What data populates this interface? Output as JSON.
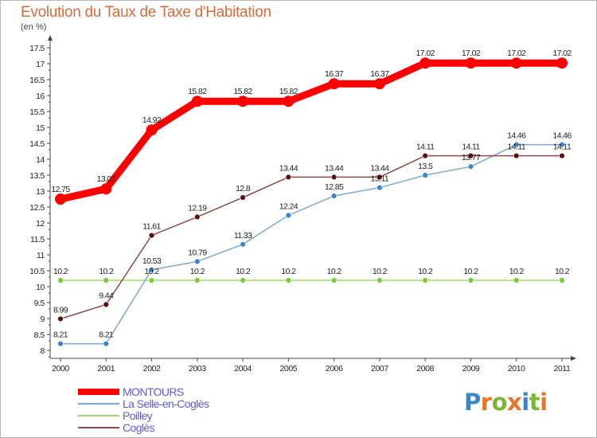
{
  "chart_data": {
    "type": "line",
    "title": "Evolution du Taux de Taxe d'Habitation",
    "ylabel": "(en %)",
    "xlabel": "",
    "x": [
      "2000",
      "2001",
      "2002",
      "2003",
      "2004",
      "2005",
      "2006",
      "2007",
      "2008",
      "2009",
      "2010",
      "2011"
    ],
    "ylim": [
      8,
      17.5
    ],
    "y_ticks": [
      "8",
      "8.5",
      "9",
      "9.5",
      "10",
      "10.5",
      "11",
      "11.5",
      "12",
      "12.5",
      "13",
      "13.5",
      "14",
      "14.5",
      "15",
      "15.5",
      "16",
      "16.5",
      "17",
      "17.5"
    ],
    "grid": false,
    "legend_position": "bottom-left",
    "series": [
      {
        "name": "MONTOURS",
        "color": "#ff0000",
        "values": [
          12.75,
          13.07,
          14.92,
          15.82,
          15.82,
          15.82,
          16.37,
          16.37,
          17.02,
          17.02,
          17.02,
          17.02
        ],
        "labels": [
          "12.75",
          "13.07",
          "14.92",
          "15.82",
          "15.82",
          "15.82",
          "16.37",
          "16.37",
          "17.02",
          "17.02",
          "17.02",
          "17.02"
        ]
      },
      {
        "name": "La Selle-en-Coglès",
        "color": "#7fa8cd",
        "marker_color": "#3a86c8",
        "values": [
          8.21,
          8.21,
          10.53,
          10.79,
          11.33,
          12.24,
          12.85,
          13.11,
          13.5,
          13.77,
          14.46,
          14.46
        ],
        "labels": [
          "8.21",
          "8.21",
          "10.53",
          "10.79",
          "11.33",
          "12.24",
          "12.85",
          "13.11",
          "13.5",
          "13.77",
          "14.46",
          "14.46"
        ]
      },
      {
        "name": "Poilley",
        "color": "#99dd66",
        "marker_color": "#77cc33",
        "values": [
          10.2,
          10.2,
          10.2,
          10.2,
          10.2,
          10.2,
          10.2,
          10.2,
          10.2,
          10.2,
          10.2,
          10.2
        ],
        "labels": [
          "10.2",
          "10.2",
          "10.2",
          "10.2",
          "10.2",
          "10.2",
          "10.2",
          "10.2",
          "10.2",
          "10.2",
          "10.2",
          "10.2"
        ]
      },
      {
        "name": "Coglès",
        "color": "#8c4a4a",
        "marker_color": "#5a1010",
        "values": [
          8.99,
          9.44,
          11.61,
          12.19,
          12.8,
          13.44,
          13.44,
          13.44,
          14.11,
          14.11,
          14.11,
          14.11
        ],
        "labels": [
          "8.99",
          "9.44",
          "11.61",
          "12.19",
          "12.8",
          "13.44",
          "13.44",
          "13.44",
          "14.11",
          "14.11",
          "14.11",
          "14.11"
        ]
      }
    ]
  },
  "logo": {
    "text": "Proxiti",
    "letter_colors": [
      "#3a86c8",
      "#e8752a",
      "#7ab833",
      "#e8752a",
      "#3a86c8",
      "#7ab833",
      "#e8752a"
    ]
  }
}
